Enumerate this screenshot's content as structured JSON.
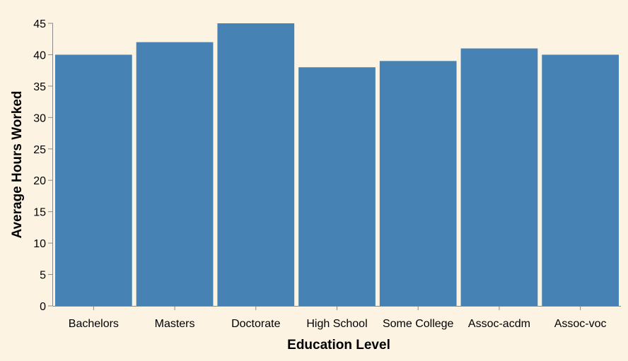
{
  "chart_data": {
    "type": "bar",
    "title": "",
    "xlabel": "Education Level",
    "ylabel": "Average Hours Worked",
    "categories": [
      "Bachelors",
      "Masters",
      "Doctorate",
      "High School",
      "Some College",
      "Assoc-acdm",
      "Assoc-voc"
    ],
    "values": [
      40,
      42,
      45,
      38,
      39,
      41,
      40
    ],
    "ylim": [
      0,
      45
    ],
    "yticks": [
      0,
      5,
      10,
      15,
      20,
      25,
      30,
      35,
      40,
      45
    ],
    "grid": false,
    "legend": "none",
    "colors": {
      "bar": "#4682b4",
      "background": "#fdf3e3",
      "axis": "#888888"
    }
  }
}
